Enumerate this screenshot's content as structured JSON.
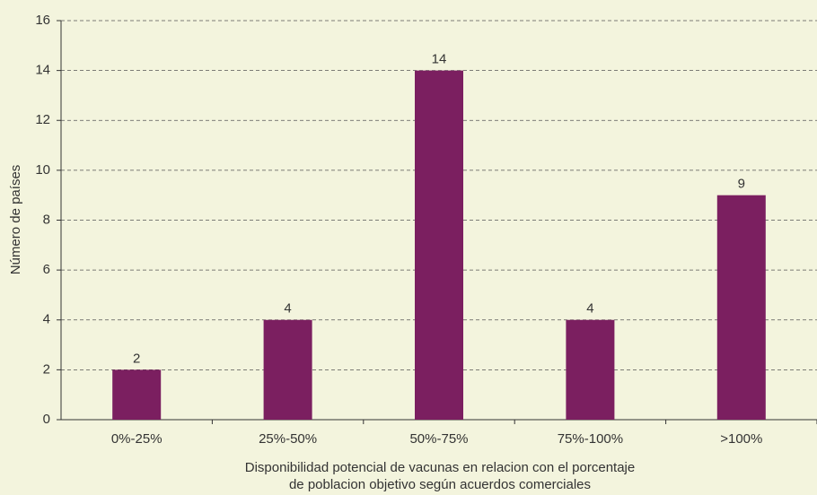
{
  "chart_data": {
    "type": "bar",
    "categories": [
      "0%-25%",
      "25%-50%",
      "50%-75%",
      "75%-100%",
      ">100%"
    ],
    "values": [
      2,
      4,
      14,
      4,
      9
    ],
    "color": "#7b1f60",
    "ylabel": "Número de países",
    "xlabel": [
      "Disponibilidad potencial de vacunas en relacion con el porcentaje",
      "de poblacion objetivo según acuerdos comerciales"
    ],
    "ylim": [
      0,
      16
    ],
    "yticks": [
      0,
      2,
      4,
      6,
      8,
      10,
      12,
      14,
      16
    ],
    "grid": true
  }
}
